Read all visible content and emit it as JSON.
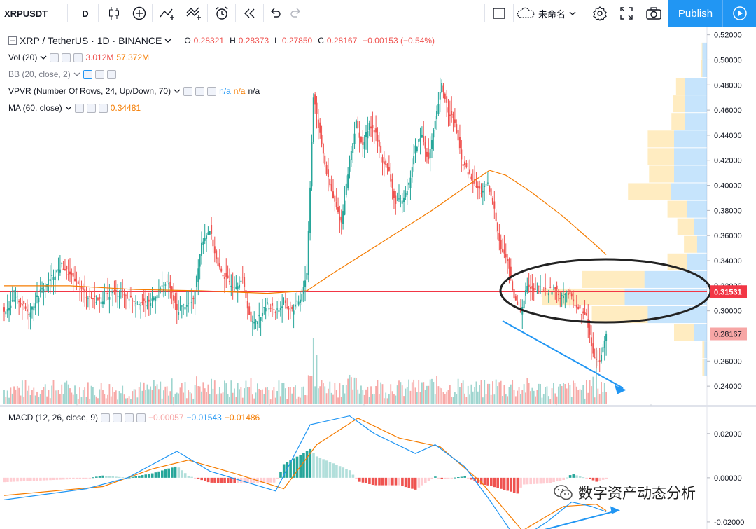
{
  "toolbar": {
    "symbol": "XRPUSDT",
    "interval": "D",
    "layout_name": "未命名",
    "publish_label": "Publish"
  },
  "legend": {
    "main_title": "XRP / TetherUS · 1D · BINANCE",
    "o_label": "O",
    "o_value": "0.28321",
    "h_label": "H",
    "h_value": "0.28373",
    "l_label": "L",
    "l_value": "0.27850",
    "c_label": "C",
    "c_value": "0.28167",
    "change": "−0.00153 (−0.54%)",
    "vol_label": "Vol (20)",
    "vol_v1": "3.012M",
    "vol_v2": "57.372M",
    "bb_label": "BB (20, close, 2)",
    "vpvr_label": "VPVR (Number Of Rows, 24, Up/Down, 70)",
    "vpvr_v1": "n/a",
    "vpvr_v2": "n/a",
    "vpvr_v3": "n/a",
    "ma_label": "MA (60, close)",
    "ma_value": "0.34481",
    "macd_label": "MACD (12, 26, close, 9)",
    "macd_v1": "−0.00057",
    "macd_v2": "−0.01543",
    "macd_v3": "−0.01486"
  },
  "price_tags": {
    "hline": "0.31531",
    "last": "0.28167"
  },
  "watermark": "数字资产动态分析",
  "colors": {
    "up": "#26a69a",
    "down": "#ef5350",
    "ma": "#f57c00",
    "macd_line": "#2196f3",
    "signal_line": "#f57c00",
    "hline": "#f23645",
    "vpvr_up": "#42a5f5",
    "vpvr_down": "#ffc94d",
    "annotation_arrow": "#2196f3",
    "ellipse": "#222222"
  },
  "chart_data": {
    "type": "candlestick",
    "symbol": "XRP / TetherUS",
    "exchange": "BINANCE",
    "interval": "1D",
    "price_axis": {
      "ylim": [
        0.225,
        0.5265
      ],
      "ticks": [
        0.24,
        0.26,
        0.28,
        0.3,
        0.32,
        0.34,
        0.36,
        0.38,
        0.4,
        0.42,
        0.44,
        0.46,
        0.48,
        0.5,
        0.52
      ]
    },
    "macd_axis": {
      "ylim": [
        -0.0232,
        0.032
      ],
      "ticks": [
        0.02,
        0.0,
        -0.02
      ]
    },
    "horizontal_line": 0.31531,
    "last_price": 0.28167,
    "close_path": [
      [
        0,
        0.3
      ],
      [
        8,
        0.31
      ],
      [
        15,
        0.298
      ],
      [
        22,
        0.315
      ],
      [
        28,
        0.325
      ],
      [
        35,
        0.336
      ],
      [
        42,
        0.325
      ],
      [
        50,
        0.312
      ],
      [
        58,
        0.308
      ],
      [
        66,
        0.315
      ],
      [
        74,
        0.312
      ],
      [
        80,
        0.308
      ],
      [
        88,
        0.305
      ],
      [
        95,
        0.318
      ],
      [
        100,
        0.322
      ],
      [
        105,
        0.3
      ],
      [
        110,
        0.305
      ],
      [
        115,
        0.307
      ],
      [
        120,
        0.355
      ],
      [
        125,
        0.365
      ],
      [
        130,
        0.335
      ],
      [
        135,
        0.325
      ],
      [
        140,
        0.32
      ],
      [
        145,
        0.325
      ],
      [
        150,
        0.29
      ],
      [
        155,
        0.295
      ],
      [
        160,
        0.305
      ],
      [
        165,
        0.3
      ],
      [
        170,
        0.305
      ],
      [
        175,
        0.3
      ],
      [
        180,
        0.31
      ],
      [
        184,
        0.33
      ],
      [
        188,
        0.47
      ],
      [
        192,
        0.44
      ],
      [
        196,
        0.41
      ],
      [
        200,
        0.39
      ],
      [
        205,
        0.37
      ],
      [
        210,
        0.42
      ],
      [
        214,
        0.45
      ],
      [
        218,
        0.43
      ],
      [
        222,
        0.45
      ],
      [
        226,
        0.44
      ],
      [
        230,
        0.42
      ],
      [
        234,
        0.41
      ],
      [
        238,
        0.385
      ],
      [
        242,
        0.39
      ],
      [
        246,
        0.4
      ],
      [
        250,
        0.43
      ],
      [
        254,
        0.44
      ],
      [
        258,
        0.42
      ],
      [
        262,
        0.45
      ],
      [
        266,
        0.48
      ],
      [
        270,
        0.46
      ],
      [
        274,
        0.45
      ],
      [
        278,
        0.42
      ],
      [
        282,
        0.41
      ],
      [
        286,
        0.4
      ],
      [
        290,
        0.395
      ],
      [
        294,
        0.4
      ],
      [
        298,
        0.38
      ],
      [
        302,
        0.35
      ],
      [
        306,
        0.34
      ],
      [
        310,
        0.31
      ],
      [
        314,
        0.3
      ],
      [
        318,
        0.32
      ],
      [
        322,
        0.315
      ],
      [
        326,
        0.318
      ],
      [
        330,
        0.315
      ],
      [
        334,
        0.318
      ],
      [
        338,
        0.312
      ],
      [
        342,
        0.315
      ],
      [
        346,
        0.308
      ],
      [
        350,
        0.3
      ],
      [
        354,
        0.295
      ],
      [
        358,
        0.265
      ],
      [
        362,
        0.26
      ],
      [
        364,
        0.27
      ],
      [
        366,
        0.2817
      ]
    ],
    "ma60_path": [
      [
        0,
        0.32
      ],
      [
        40,
        0.32
      ],
      [
        80,
        0.317
      ],
      [
        120,
        0.316
      ],
      [
        160,
        0.314
      ],
      [
        184,
        0.316
      ],
      [
        200,
        0.33
      ],
      [
        230,
        0.355
      ],
      [
        260,
        0.38
      ],
      [
        285,
        0.403
      ],
      [
        295,
        0.412
      ],
      [
        305,
        0.408
      ],
      [
        320,
        0.395
      ],
      [
        340,
        0.375
      ],
      [
        360,
        0.352
      ],
      [
        366,
        0.3448
      ]
    ],
    "macd_path": [
      [
        0,
        -0.01
      ],
      [
        50,
        -0.005
      ],
      [
        75,
        0.0
      ],
      [
        105,
        0.012
      ],
      [
        125,
        0.003
      ],
      [
        165,
        -0.006
      ],
      [
        186,
        0.024
      ],
      [
        210,
        0.028
      ],
      [
        225,
        0.02
      ],
      [
        250,
        0.011
      ],
      [
        262,
        0.015
      ],
      [
        280,
        0.005
      ],
      [
        295,
        -0.01
      ],
      [
        312,
        -0.0285
      ],
      [
        330,
        -0.02
      ],
      [
        345,
        -0.011
      ],
      [
        357,
        -0.013
      ],
      [
        366,
        -0.0154
      ]
    ],
    "signal_path": [
      [
        0,
        -0.008
      ],
      [
        60,
        -0.004
      ],
      [
        90,
        0.004
      ],
      [
        112,
        0.008
      ],
      [
        140,
        0.002
      ],
      [
        170,
        -0.005
      ],
      [
        190,
        0.015
      ],
      [
        215,
        0.027
      ],
      [
        240,
        0.018
      ],
      [
        265,
        0.014
      ],
      [
        290,
        -0.002
      ],
      [
        315,
        -0.024
      ],
      [
        340,
        -0.013
      ],
      [
        360,
        -0.012
      ],
      [
        366,
        -0.0149
      ]
    ],
    "vpvr_rows": [
      {
        "price": 0.507,
        "up": 0.0007,
        "down": 0.0001
      },
      {
        "price": 0.493,
        "up": 0.0007,
        "down": 0.0002
      },
      {
        "price": 0.479,
        "up": 0.0034,
        "down": 0.0013
      },
      {
        "price": 0.465,
        "up": 0.0034,
        "down": 0.0018
      },
      {
        "price": 0.451,
        "up": 0.0034,
        "down": 0.002
      },
      {
        "price": 0.437,
        "up": 0.005,
        "down": 0.004
      },
      {
        "price": 0.423,
        "up": 0.005,
        "down": 0.004
      },
      {
        "price": 0.409,
        "up": 0.005,
        "down": 0.0038
      },
      {
        "price": 0.395,
        "up": 0.0055,
        "down": 0.0065
      },
      {
        "price": 0.381,
        "up": 0.003,
        "down": 0.003
      },
      {
        "price": 0.367,
        "up": 0.002,
        "down": 0.0025
      },
      {
        "price": 0.353,
        "up": 0.0015,
        "down": 0.002
      },
      {
        "price": 0.339,
        "up": 0.003,
        "down": 0.003
      },
      {
        "price": 0.325,
        "up": 0.0095,
        "down": 0.0095
      },
      {
        "price": 0.311,
        "up": 0.0125,
        "down": 0.0125
      },
      {
        "price": 0.297,
        "up": 0.009,
        "down": 0.0085
      },
      {
        "price": 0.283,
        "up": 0.002,
        "down": 0.003
      },
      {
        "price": 0.269,
        "up": 0.0004,
        "down": 0.0003
      },
      {
        "price": 0.255,
        "up": 0.0004,
        "down": 0.0003
      }
    ]
  }
}
